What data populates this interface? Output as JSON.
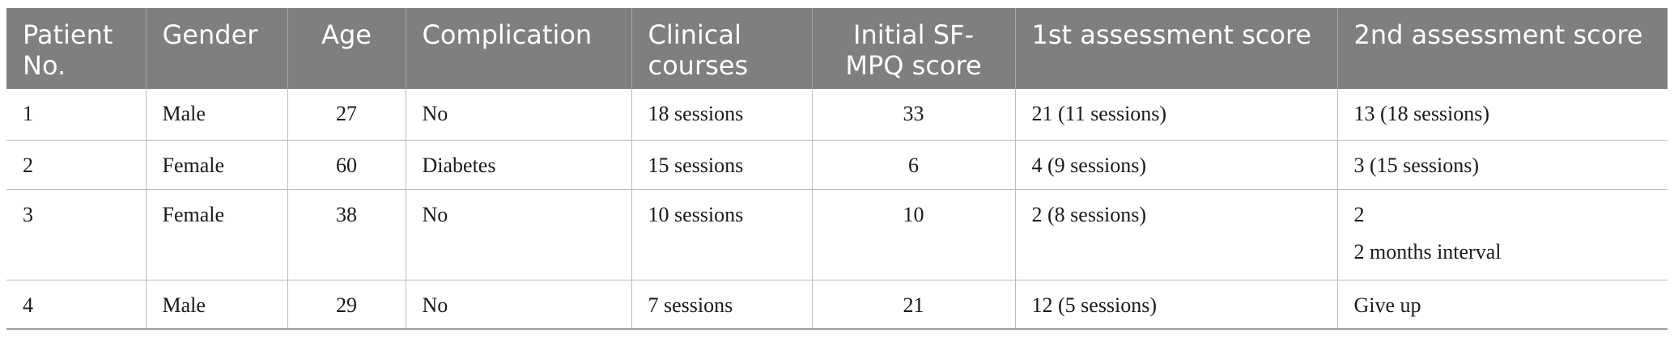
{
  "table": {
    "headers": [
      "Patient No.",
      "Gender",
      "Age",
      "Complication",
      "Clinical courses",
      "Initial SF-MPQ score",
      "1st assessment score",
      "2nd assessment score"
    ],
    "rows": [
      [
        "1",
        "Male",
        "27",
        "No",
        "18 sessions",
        "33",
        "21 (11 sessions)",
        "13 (18 sessions)"
      ],
      [
        "2",
        "Female",
        "60",
        "Diabetes",
        "15 sessions",
        "6",
        "4 (9 sessions)",
        "3 (15 sessions)"
      ],
      [
        "3",
        "Female",
        "38",
        "No",
        "10 sessions",
        "10",
        "2 (8 sessions)",
        "2"
      ],
      [
        "4",
        "Male",
        "29",
        "No",
        "7 sessions",
        "21",
        "12 (5 sessions)",
        "Give up"
      ]
    ],
    "row3_col8_note": "2 months interval"
  }
}
